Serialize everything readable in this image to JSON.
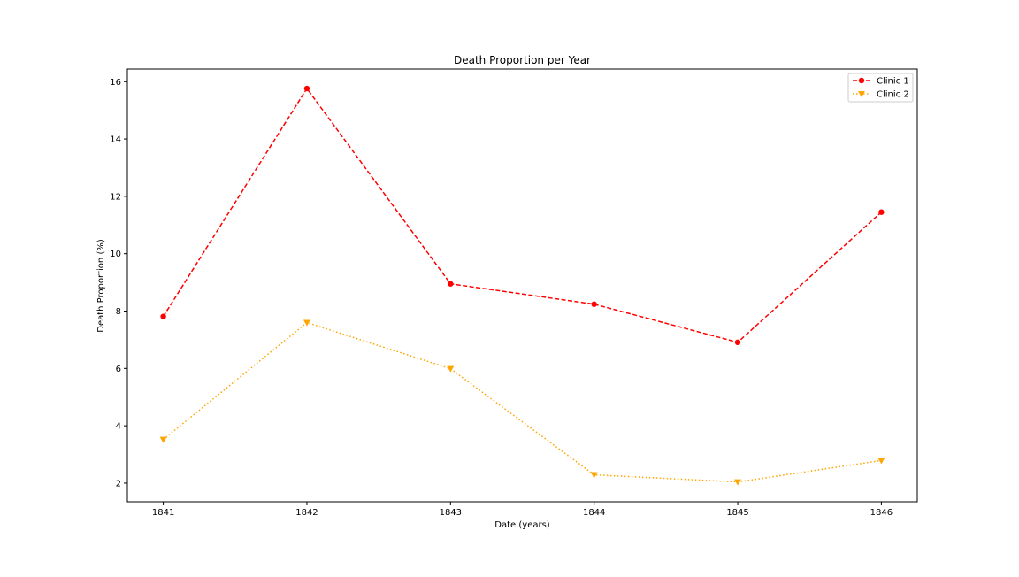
{
  "chart_data": {
    "type": "line",
    "title": "Death Proportion per Year",
    "xlabel": "Date (years)",
    "ylabel": "Death Proportion (%)",
    "x": [
      1841,
      1842,
      1843,
      1844,
      1845,
      1846
    ],
    "xticks": [
      "1841",
      "1842",
      "1843",
      "1844",
      "1845",
      "1846"
    ],
    "yticks": [
      2,
      4,
      6,
      8,
      10,
      12,
      14,
      16
    ],
    "ylim": [
      1.35,
      16.44
    ],
    "xlim": [
      1840.75,
      1846.25
    ],
    "grid": false,
    "legend_position": "top-right",
    "series": [
      {
        "name": "Clinic 1",
        "values": [
          7.81,
          15.76,
          8.95,
          8.24,
          6.91,
          11.45
        ],
        "color": "#ff0000",
        "line_style": "dashed",
        "marker": "circle"
      },
      {
        "name": "Clinic 2",
        "values": [
          3.52,
          7.6,
          5.99,
          2.29,
          2.04,
          2.79
        ],
        "color": "#ffa500",
        "line_style": "dotted",
        "marker": "triangle-down"
      }
    ]
  }
}
